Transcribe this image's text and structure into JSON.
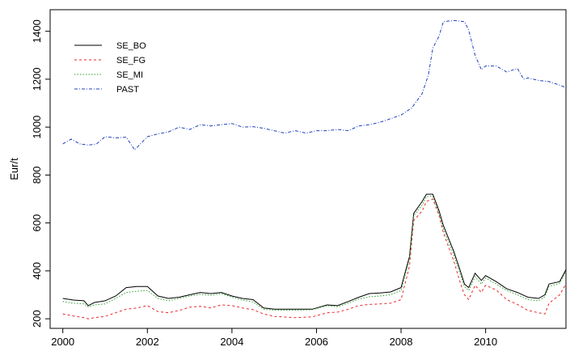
{
  "chart_data": {
    "type": "line",
    "title": "",
    "xlabel": "",
    "ylabel": "Eur/t",
    "xlim": [
      1999.7,
      2011.9
    ],
    "ylim": [
      160,
      1490
    ],
    "x_ticks": [
      2000,
      2002,
      2004,
      2006,
      2008,
      2010
    ],
    "x_tick_labels": [
      "2000",
      "2002",
      "2004",
      "2006",
      "2008",
      "2010"
    ],
    "y_ticks": [
      200,
      400,
      600,
      800,
      1000,
      1200,
      1400
    ],
    "y_tick_labels": [
      "200",
      "400",
      "600",
      "800",
      "1000",
      "1200",
      "1400"
    ],
    "grid": false,
    "legend": "top-left",
    "series": [
      {
        "name": "SE_BO",
        "color": "#000000",
        "dash": "solid",
        "points": [
          [
            2000.0,
            285
          ],
          [
            2000.25,
            278
          ],
          [
            2000.5,
            275
          ],
          [
            2000.6,
            255
          ],
          [
            2000.75,
            268
          ],
          [
            2001.0,
            275
          ],
          [
            2001.25,
            295
          ],
          [
            2001.5,
            330
          ],
          [
            2001.75,
            335
          ],
          [
            2002.0,
            335
          ],
          [
            2002.25,
            295
          ],
          [
            2002.5,
            285
          ],
          [
            2002.75,
            290
          ],
          [
            2003.0,
            300
          ],
          [
            2003.25,
            310
          ],
          [
            2003.5,
            305
          ],
          [
            2003.75,
            310
          ],
          [
            2004.0,
            295
          ],
          [
            2004.25,
            285
          ],
          [
            2004.5,
            280
          ],
          [
            2004.75,
            245
          ],
          [
            2005.0,
            240
          ],
          [
            2005.5,
            240
          ],
          [
            2005.9,
            240
          ],
          [
            2006.25,
            258
          ],
          [
            2006.5,
            255
          ],
          [
            2006.75,
            272
          ],
          [
            2007.0,
            290
          ],
          [
            2007.25,
            305
          ],
          [
            2007.5,
            308
          ],
          [
            2007.75,
            312
          ],
          [
            2008.0,
            330
          ],
          [
            2008.2,
            460
          ],
          [
            2008.3,
            640
          ],
          [
            2008.5,
            690
          ],
          [
            2008.6,
            720
          ],
          [
            2008.75,
            720
          ],
          [
            2008.9,
            650
          ],
          [
            2009.0,
            590
          ],
          [
            2009.25,
            480
          ],
          [
            2009.4,
            400
          ],
          [
            2009.5,
            345
          ],
          [
            2009.6,
            330
          ],
          [
            2009.75,
            390
          ],
          [
            2009.9,
            360
          ],
          [
            2010.0,
            380
          ],
          [
            2010.25,
            355
          ],
          [
            2010.5,
            325
          ],
          [
            2010.75,
            310
          ],
          [
            2011.0,
            290
          ],
          [
            2011.25,
            285
          ],
          [
            2011.4,
            300
          ],
          [
            2011.5,
            345
          ],
          [
            2011.75,
            355
          ],
          [
            2011.9,
            405
          ],
          [
            2012.25,
            400
          ],
          [
            2012.5,
            455
          ]
        ]
      },
      {
        "name": "SE_FG",
        "color": "#e8262a",
        "dash": "3,3",
        "points": [
          [
            2000.0,
            220
          ],
          [
            2000.25,
            212
          ],
          [
            2000.5,
            205
          ],
          [
            2000.6,
            200
          ],
          [
            2000.75,
            205
          ],
          [
            2001.0,
            210
          ],
          [
            2001.25,
            225
          ],
          [
            2001.5,
            240
          ],
          [
            2001.75,
            245
          ],
          [
            2002.0,
            255
          ],
          [
            2002.25,
            230
          ],
          [
            2002.5,
            225
          ],
          [
            2002.75,
            235
          ],
          [
            2003.0,
            248
          ],
          [
            2003.25,
            252
          ],
          [
            2003.5,
            245
          ],
          [
            2003.75,
            258
          ],
          [
            2004.0,
            255
          ],
          [
            2004.25,
            245
          ],
          [
            2004.5,
            238
          ],
          [
            2004.75,
            220
          ],
          [
            2005.0,
            210
          ],
          [
            2005.5,
            205
          ],
          [
            2005.9,
            208
          ],
          [
            2006.25,
            225
          ],
          [
            2006.5,
            228
          ],
          [
            2006.75,
            240
          ],
          [
            2007.0,
            255
          ],
          [
            2007.25,
            260
          ],
          [
            2007.5,
            262
          ],
          [
            2007.75,
            265
          ],
          [
            2008.0,
            280
          ],
          [
            2008.2,
            420
          ],
          [
            2008.3,
            610
          ],
          [
            2008.5,
            650
          ],
          [
            2008.6,
            690
          ],
          [
            2008.75,
            700
          ],
          [
            2008.9,
            630
          ],
          [
            2009.0,
            560
          ],
          [
            2009.25,
            440
          ],
          [
            2009.4,
            350
          ],
          [
            2009.5,
            300
          ],
          [
            2009.6,
            280
          ],
          [
            2009.75,
            340
          ],
          [
            2009.9,
            310
          ],
          [
            2010.0,
            340
          ],
          [
            2010.25,
            320
          ],
          [
            2010.5,
            280
          ],
          [
            2010.75,
            260
          ],
          [
            2011.0,
            235
          ],
          [
            2011.25,
            225
          ],
          [
            2011.4,
            220
          ],
          [
            2011.5,
            265
          ],
          [
            2011.75,
            300
          ],
          [
            2011.9,
            345
          ],
          [
            2012.25,
            335
          ],
          [
            2012.5,
            395
          ]
        ]
      },
      {
        "name": "SE_MI",
        "color": "#2ca02c",
        "dash": "1.5,2",
        "points": [
          [
            2000.0,
            272
          ],
          [
            2000.25,
            265
          ],
          [
            2000.5,
            262
          ],
          [
            2000.6,
            250
          ],
          [
            2000.75,
            258
          ],
          [
            2001.0,
            262
          ],
          [
            2001.25,
            285
          ],
          [
            2001.5,
            310
          ],
          [
            2001.75,
            315
          ],
          [
            2002.0,
            318
          ],
          [
            2002.25,
            285
          ],
          [
            2002.5,
            275
          ],
          [
            2002.75,
            285
          ],
          [
            2003.0,
            295
          ],
          [
            2003.25,
            302
          ],
          [
            2003.5,
            298
          ],
          [
            2003.75,
            305
          ],
          [
            2004.0,
            290
          ],
          [
            2004.25,
            278
          ],
          [
            2004.5,
            270
          ],
          [
            2004.75,
            240
          ],
          [
            2005.0,
            236
          ],
          [
            2005.5,
            236
          ],
          [
            2005.9,
            238
          ],
          [
            2006.25,
            255
          ],
          [
            2006.5,
            250
          ],
          [
            2006.75,
            265
          ],
          [
            2007.0,
            282
          ],
          [
            2007.25,
            292
          ],
          [
            2007.5,
            295
          ],
          [
            2007.75,
            300
          ],
          [
            2008.0,
            318
          ],
          [
            2008.2,
            450
          ],
          [
            2008.3,
            630
          ],
          [
            2008.5,
            675
          ],
          [
            2008.6,
            710
          ],
          [
            2008.75,
            712
          ],
          [
            2008.9,
            640
          ],
          [
            2009.0,
            575
          ],
          [
            2009.25,
            465
          ],
          [
            2009.4,
            385
          ],
          [
            2009.5,
            335
          ],
          [
            2009.6,
            318
          ],
          [
            2009.75,
            375
          ],
          [
            2009.9,
            345
          ],
          [
            2010.0,
            370
          ],
          [
            2010.25,
            345
          ],
          [
            2010.5,
            318
          ],
          [
            2010.75,
            300
          ],
          [
            2011.0,
            280
          ],
          [
            2011.25,
            275
          ],
          [
            2011.4,
            292
          ],
          [
            2011.5,
            335
          ],
          [
            2011.75,
            348
          ],
          [
            2011.9,
            398
          ],
          [
            2012.25,
            390
          ],
          [
            2012.5,
            440
          ]
        ]
      },
      {
        "name": "PAST",
        "color": "#1f3fbf",
        "dash": "4,2,1,2",
        "points": [
          [
            2000.0,
            930
          ],
          [
            2000.2,
            950
          ],
          [
            2000.4,
            930
          ],
          [
            2000.6,
            925
          ],
          [
            2000.8,
            930
          ],
          [
            2001.0,
            960
          ],
          [
            2001.25,
            955
          ],
          [
            2001.5,
            958
          ],
          [
            2001.7,
            905
          ],
          [
            2002.0,
            960
          ],
          [
            2002.25,
            972
          ],
          [
            2002.5,
            980
          ],
          [
            2002.75,
            1000
          ],
          [
            2003.0,
            990
          ],
          [
            2003.25,
            1010
          ],
          [
            2003.5,
            1005
          ],
          [
            2003.75,
            1010
          ],
          [
            2004.0,
            1015
          ],
          [
            2004.25,
            1000
          ],
          [
            2004.5,
            1002
          ],
          [
            2004.75,
            995
          ],
          [
            2005.0,
            985
          ],
          [
            2005.25,
            975
          ],
          [
            2005.5,
            985
          ],
          [
            2005.75,
            975
          ],
          [
            2006.0,
            985
          ],
          [
            2006.25,
            985
          ],
          [
            2006.5,
            990
          ],
          [
            2006.75,
            985
          ],
          [
            2007.0,
            1005
          ],
          [
            2007.25,
            1010
          ],
          [
            2007.5,
            1020
          ],
          [
            2007.75,
            1035
          ],
          [
            2008.0,
            1050
          ],
          [
            2008.25,
            1080
          ],
          [
            2008.5,
            1140
          ],
          [
            2008.65,
            1220
          ],
          [
            2008.75,
            1330
          ],
          [
            2008.9,
            1380
          ],
          [
            2009.0,
            1440
          ],
          [
            2009.25,
            1445
          ],
          [
            2009.5,
            1440
          ],
          [
            2009.6,
            1405
          ],
          [
            2009.75,
            1300
          ],
          [
            2009.9,
            1240
          ],
          [
            2010.0,
            1255
          ],
          [
            2010.25,
            1255
          ],
          [
            2010.5,
            1230
          ],
          [
            2010.75,
            1245
          ],
          [
            2010.9,
            1200
          ],
          [
            2011.0,
            1205
          ],
          [
            2011.25,
            1195
          ],
          [
            2011.5,
            1190
          ],
          [
            2011.75,
            1175
          ],
          [
            2011.9,
            1165
          ],
          [
            2012.0,
            1195
          ],
          [
            2012.2,
            1150
          ],
          [
            2012.4,
            1175
          ]
        ]
      }
    ]
  }
}
